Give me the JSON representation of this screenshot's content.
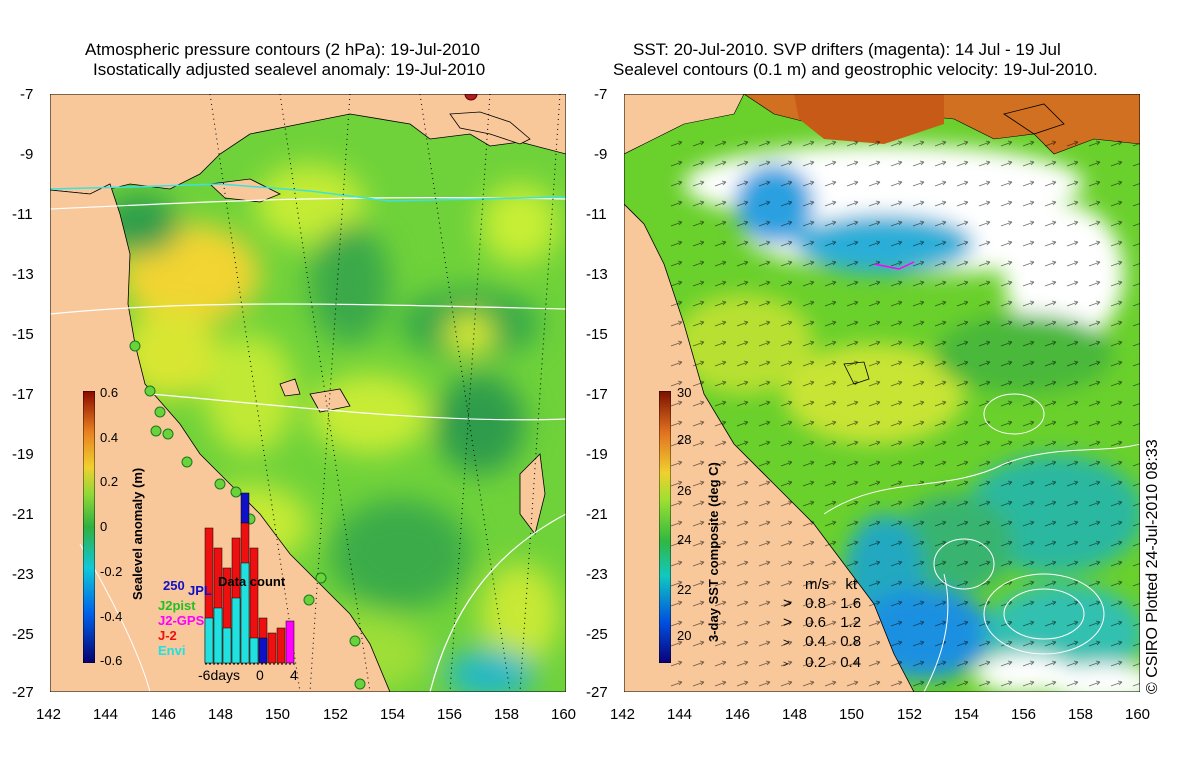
{
  "left_panel": {
    "title_line1": "Atmospheric pressure contours (2 hPa): 19-Jul-2010",
    "title_line2": "Isostatically adjusted sealevel anomaly: 19-Jul-2010",
    "colorbar": {
      "label": "Sealevel anomaly (m)",
      "ticks": [
        "0.6",
        "0.4",
        "0.2",
        "0",
        "-0.2",
        "-0.4",
        "-0.6"
      ]
    },
    "inset": {
      "title": "Data count",
      "count_label": "250",
      "legend": [
        {
          "label": "JPL",
          "color": "#1010c8"
        },
        {
          "label": "J2pist",
          "color": "#22c022"
        },
        {
          "label": "J2-GPS",
          "color": "#ff00ff"
        },
        {
          "label": "J-2",
          "color": "#ee1010"
        },
        {
          "label": "Envi",
          "color": "#20e0e0"
        }
      ],
      "x_ticks": [
        "-6days",
        "0",
        "4"
      ]
    }
  },
  "right_panel": {
    "title_line1": "SST: 20-Jul-2010. SVP drifters (magenta): 14 Jul - 19 Jul",
    "title_line2": "Sealevel contours (0.1 m) and geostrophic velocity: 19-Jul-2010.",
    "colorbar": {
      "label": "3-day SST composite (deg C)",
      "ticks": [
        "30",
        "28",
        "26",
        "24",
        "22",
        "20"
      ]
    },
    "velocity_legend": {
      "header_ms": "m/s",
      "header_kt": "kt",
      "rows": [
        {
          "ms": "0.8",
          "kt": "1.6"
        },
        {
          "ms": "0.6",
          "kt": "1.2"
        },
        {
          "ms": "0.4",
          "kt": "0.8"
        },
        {
          "ms": "0.2",
          "kt": "0.4"
        }
      ]
    }
  },
  "axes": {
    "lat_ticks": [
      "-7",
      "-9",
      "-11",
      "-13",
      "-15",
      "-17",
      "-19",
      "-21",
      "-23",
      "-25",
      "-27"
    ],
    "lon_ticks": [
      "142",
      "144",
      "146",
      "148",
      "150",
      "152",
      "154",
      "156",
      "158",
      "160"
    ]
  },
  "credit": "© CSIRO Plotted 24-Jul-2010 08:33",
  "colors": {
    "land": "#f8c79a",
    "ocean_green": "#5bcf3a",
    "ocean_yellow": "#c8ee35",
    "ocean_dark": "#2c9e48"
  }
}
